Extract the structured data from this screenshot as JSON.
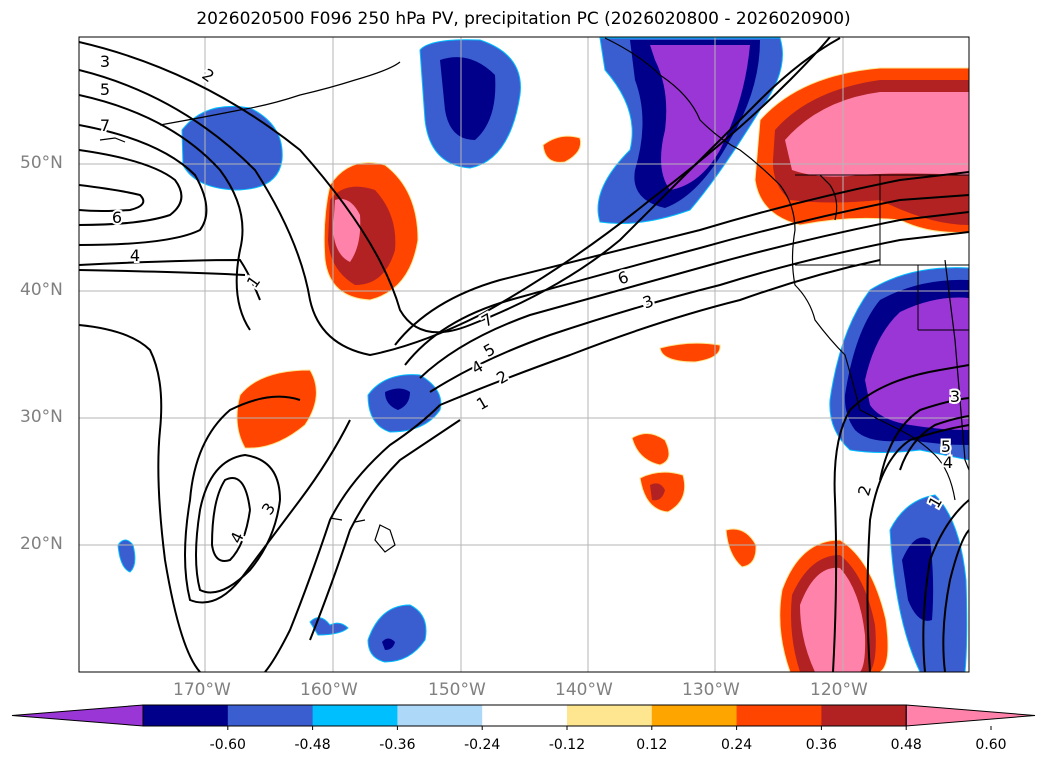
{
  "title": "2026020500 F096 250 hPa PV, precipitation PC (2026020800 - 2026020900)",
  "lat_labels": [
    "50°N",
    "40°N",
    "30°N",
    "20°N"
  ],
  "lon_labels": [
    "170°W",
    "160°W",
    "150°W",
    "140°W",
    "130°W",
    "120°W"
  ],
  "colorbar": {
    "ticks": [
      "-0.60",
      "-0.48",
      "-0.36",
      "-0.24",
      "-0.12",
      "0.12",
      "0.24",
      "0.36",
      "0.48",
      "0.60"
    ],
    "colors": [
      "#9a35d6",
      "#00008b",
      "#3a5dcf",
      "#00bfff",
      "#add8f7",
      "#ffffff",
      "#fde68f",
      "#ffa500",
      "#ff4500",
      "#b22222",
      "#ff82ab"
    ]
  },
  "contour_labels": [
    "3",
    "2",
    "5",
    "7",
    "6",
    "4",
    "1",
    "1",
    "3",
    "4",
    "7",
    "6",
    "3",
    "4",
    "5",
    "2",
    "1",
    "2",
    "3",
    "4",
    "5"
  ],
  "palette": {
    "coast": "#000000",
    "contour": "#000000",
    "grid": "#b5b5b5"
  }
}
